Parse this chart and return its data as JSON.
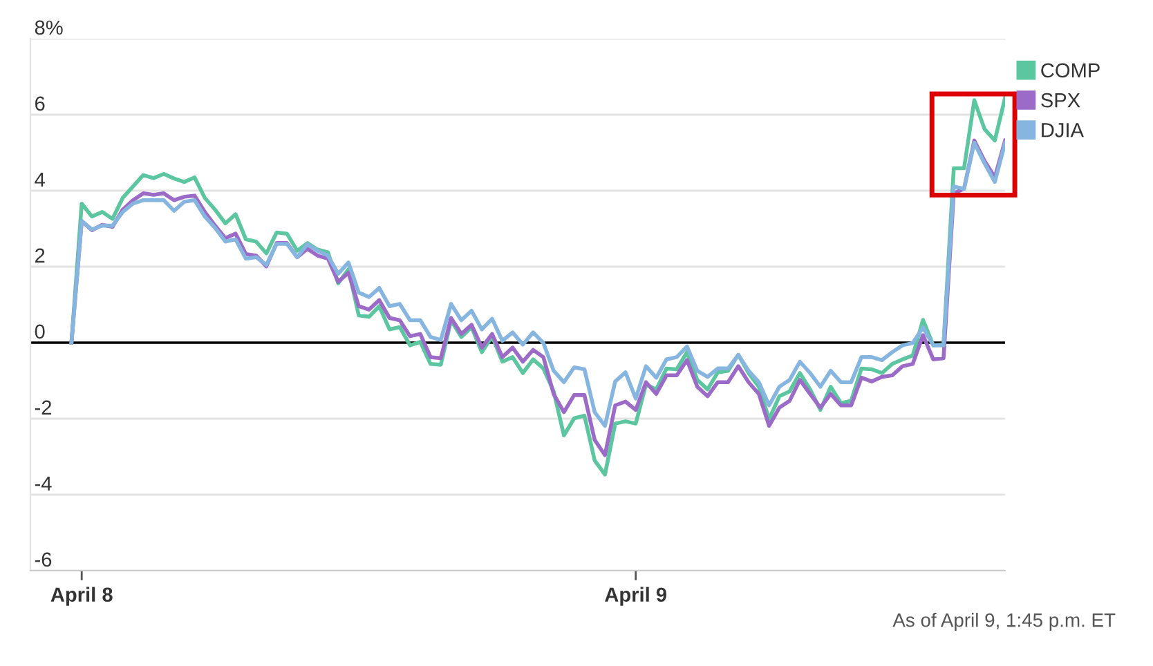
{
  "chart_data": {
    "type": "line",
    "categories": [
      null,
      "April 8",
      null,
      null,
      null,
      null,
      null,
      null,
      null,
      null,
      null,
      null,
      null,
      null,
      null,
      null,
      null,
      null,
      null,
      null,
      null,
      null,
      null,
      null,
      null,
      null,
      null,
      null,
      null,
      null,
      null,
      null,
      null,
      null,
      null,
      null,
      null,
      null,
      null,
      null,
      null,
      null,
      null,
      null,
      null,
      null,
      null,
      null,
      null,
      null,
      null,
      null,
      null,
      null,
      null,
      "April 9",
      null,
      null,
      null,
      null,
      null,
      null,
      null,
      null,
      null,
      null,
      null,
      null,
      null,
      null,
      null,
      null,
      null,
      null,
      null,
      null,
      null,
      null,
      null,
      null,
      null,
      null,
      null,
      null,
      null,
      null,
      null,
      null,
      null,
      null,
      null,
      null
    ],
    "series": [
      {
        "name": "COMP",
        "color": "#5cc6a0",
        "values": [
          0,
          3.66,
          3.32,
          3.44,
          3.26,
          3.81,
          4.11,
          4.41,
          4.33,
          4.44,
          4.32,
          4.23,
          4.35,
          3.81,
          3.5,
          3.14,
          3.38,
          2.72,
          2.66,
          2.35,
          2.9,
          2.87,
          2.42,
          2.62,
          2.45,
          2.38,
          1.56,
          1.93,
          0.72,
          0.68,
          0.96,
          0.35,
          0.41,
          -0.07,
          0.02,
          -0.56,
          -0.58,
          0.59,
          0.15,
          0.41,
          -0.25,
          0.17,
          -0.5,
          -0.38,
          -0.8,
          -0.44,
          -0.68,
          -1.28,
          -2.44,
          -1.99,
          -1.92,
          -3.1,
          -3.47,
          -2.13,
          -2.07,
          -2.13,
          -1.1,
          -1.23,
          -0.68,
          -0.7,
          -0.25,
          -0.98,
          -1.23,
          -0.78,
          -0.74,
          -0.32,
          -0.8,
          -1.16,
          -2.01,
          -1.41,
          -1.28,
          -0.8,
          -1.23,
          -1.77,
          -1.16,
          -1.59,
          -1.53,
          -0.68,
          -0.7,
          -0.8,
          -0.56,
          -0.44,
          -0.34,
          0.6,
          -0.07,
          -0.05,
          4.59,
          4.59,
          6.38,
          5.62,
          5.32,
          6.45
        ]
      },
      {
        "name": "SPX",
        "color": "#9b6bc7",
        "values": [
          0,
          3.2,
          2.96,
          3.1,
          3.05,
          3.5,
          3.75,
          3.93,
          3.89,
          3.93,
          3.75,
          3.84,
          3.87,
          3.44,
          3.08,
          2.75,
          2.87,
          2.33,
          2.29,
          2.01,
          2.62,
          2.62,
          2.25,
          2.47,
          2.29,
          2.21,
          1.6,
          1.84,
          0.96,
          0.87,
          1.12,
          0.65,
          0.59,
          0.17,
          0.23,
          -0.38,
          -0.41,
          0.65,
          0.23,
          0.47,
          -0.13,
          0.23,
          -0.38,
          -0.13,
          -0.5,
          -0.19,
          -0.38,
          -1.35,
          -1.83,
          -1.38,
          -1.38,
          -2.56,
          -2.96,
          -1.65,
          -1.55,
          -1.77,
          -1.04,
          -1.35,
          -0.86,
          -0.86,
          -0.46,
          -1.16,
          -1.41,
          -1.04,
          -1.04,
          -0.62,
          -1.04,
          -1.35,
          -2.19,
          -1.71,
          -1.53,
          -0.98,
          -1.35,
          -1.71,
          -1.35,
          -1.65,
          -1.65,
          -0.92,
          -1.02,
          -0.9,
          -0.86,
          -0.62,
          -0.56,
          0.2,
          -0.44,
          -0.41,
          3.93,
          4.05,
          5.32,
          4.78,
          4.35,
          5.32
        ]
      },
      {
        "name": "DJIA",
        "color": "#86b6e0",
        "values": [
          0,
          3.2,
          2.98,
          3.08,
          3.08,
          3.44,
          3.66,
          3.75,
          3.75,
          3.75,
          3.47,
          3.71,
          3.75,
          3.32,
          3.02,
          2.66,
          2.72,
          2.21,
          2.25,
          2.05,
          2.6,
          2.6,
          2.25,
          2.59,
          2.42,
          2.29,
          1.81,
          2.11,
          1.32,
          1.2,
          1.44,
          0.96,
          1.02,
          0.59,
          0.59,
          0.15,
          0.07,
          1.02,
          0.59,
          0.84,
          0.35,
          0.63,
          0.05,
          0.27,
          -0.05,
          0.27,
          -0.01,
          -0.74,
          -1.04,
          -0.65,
          -0.7,
          -1.83,
          -2.19,
          -1.02,
          -0.78,
          -1.47,
          -0.62,
          -0.92,
          -0.44,
          -0.38,
          -0.1,
          -0.74,
          -0.9,
          -0.68,
          -0.68,
          -0.32,
          -0.74,
          -1.04,
          -1.65,
          -1.16,
          -0.98,
          -0.5,
          -0.8,
          -1.16,
          -0.74,
          -1.04,
          -1.04,
          -0.38,
          -0.38,
          -0.46,
          -0.25,
          -0.07,
          -0.01,
          0.4,
          -0.07,
          -0.07,
          4.11,
          4.05,
          5.26,
          4.72,
          4.23,
          5.26
        ]
      }
    ],
    "ylim": [
      -6,
      8
    ],
    "yticks": [
      -6,
      -4,
      -2,
      0,
      2,
      4,
      6,
      {
        "value": 8,
        "label": "8%"
      }
    ],
    "grid": "y",
    "legend": "top right",
    "marker": "none",
    "line_style": "solid",
    "ref_lines": [
      {
        "axis": "y",
        "value": 0,
        "color": "#000000"
      }
    ],
    "annotations": [
      "As of April 9, 1:45 p.m. ET"
    ]
  }
}
